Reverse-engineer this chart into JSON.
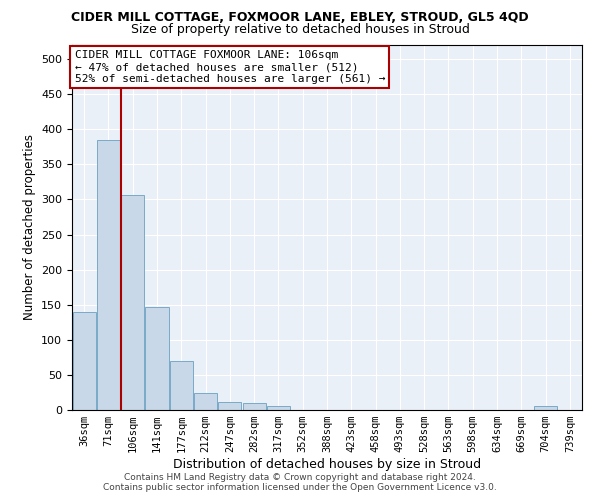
{
  "title": "CIDER MILL COTTAGE, FOXMOOR LANE, EBLEY, STROUD, GL5 4QD",
  "subtitle": "Size of property relative to detached houses in Stroud",
  "xlabel": "Distribution of detached houses by size in Stroud",
  "ylabel": "Number of detached properties",
  "bar_labels": [
    "36sqm",
    "71sqm",
    "106sqm",
    "141sqm",
    "177sqm",
    "212sqm",
    "247sqm",
    "282sqm",
    "317sqm",
    "352sqm",
    "388sqm",
    "423sqm",
    "458sqm",
    "493sqm",
    "528sqm",
    "563sqm",
    "598sqm",
    "634sqm",
    "669sqm",
    "704sqm",
    "739sqm"
  ],
  "bar_values": [
    140,
    385,
    307,
    147,
    70,
    24,
    11,
    10,
    6,
    0,
    0,
    0,
    0,
    0,
    0,
    0,
    0,
    0,
    0,
    5,
    0
  ],
  "bar_color": "#c8d8e8",
  "bar_edge_color": "#7aaac8",
  "vline_x_idx": 1.5,
  "vline_color": "#aa0000",
  "annotation_text": "CIDER MILL COTTAGE FOXMOOR LANE: 106sqm\n← 47% of detached houses are smaller (512)\n52% of semi-detached houses are larger (561) →",
  "annotation_box_color": "white",
  "annotation_box_edge": "#aa0000",
  "ylim": [
    0,
    520
  ],
  "yticks": [
    0,
    50,
    100,
    150,
    200,
    250,
    300,
    350,
    400,
    450,
    500
  ],
  "footer_line1": "Contains HM Land Registry data © Crown copyright and database right 2024.",
  "footer_line2": "Contains public sector information licensed under the Open Government Licence v3.0.",
  "bg_color": "#eaf0f8",
  "title_fontsize": 9,
  "subtitle_fontsize": 9
}
